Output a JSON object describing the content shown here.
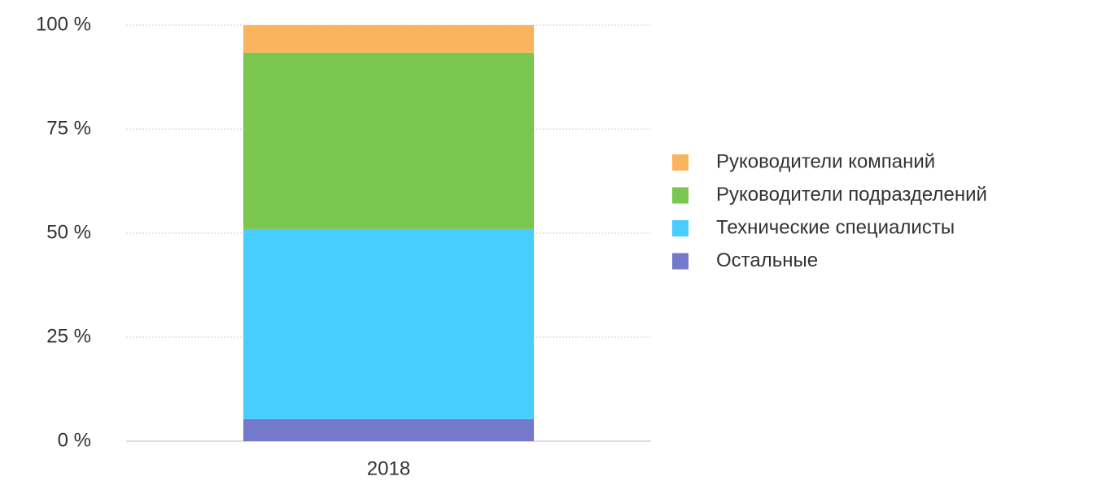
{
  "chart_data": {
    "type": "stacked_bar",
    "categories": [
      "2018"
    ],
    "series": [
      {
        "name": "Остальные",
        "color": "#7479cc",
        "values": [
          5.3
        ]
      },
      {
        "name": "Технические специалисты",
        "color": "#47cdfe",
        "values": [
          45.7
        ]
      },
      {
        "name": "Руководители подразделений",
        "color": "#7ac74f",
        "values": [
          42.4
        ]
      },
      {
        "name": "Руководители компаний",
        "color": "#fbb45e",
        "values": [
          6.6
        ]
      }
    ],
    "ylim": [
      0,
      100
    ],
    "yticks": [
      {
        "value": 0,
        "label": "0 %"
      },
      {
        "value": 25,
        "label": "25 %"
      },
      {
        "value": 50,
        "label": "50 %"
      },
      {
        "value": 75,
        "label": "75 %"
      },
      {
        "value": 100,
        "label": "100 %"
      }
    ],
    "grid": true,
    "legend": "right"
  }
}
